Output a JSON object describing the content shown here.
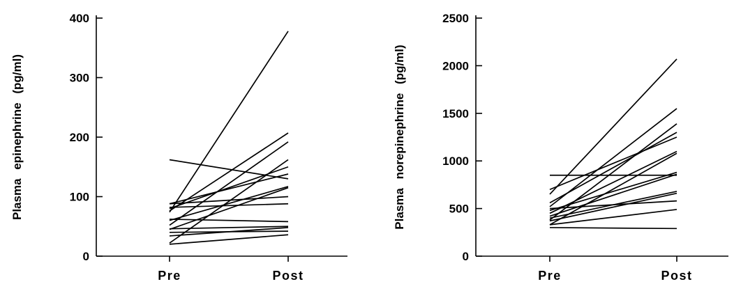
{
  "chart_data": [
    {
      "type": "line",
      "ylabel": "Plasma epinephrine (pg/ml)",
      "xlabel": "",
      "categories": [
        "Pre",
        "Post"
      ],
      "yticks": [
        0,
        100,
        200,
        300,
        400
      ],
      "ylim": [
        0,
        400
      ],
      "grid": false,
      "series": [
        {
          "values": [
            74,
            378
          ]
        },
        {
          "values": [
            76,
            207
          ]
        },
        {
          "values": [
            52,
            192
          ]
        },
        {
          "values": [
            22,
            162
          ]
        },
        {
          "values": [
            162,
            130
          ]
        },
        {
          "values": [
            80,
            150
          ]
        },
        {
          "values": [
            88,
            138
          ]
        },
        {
          "values": [
            60,
            117
          ]
        },
        {
          "values": [
            45,
            115
          ]
        },
        {
          "values": [
            88,
            100
          ]
        },
        {
          "values": [
            82,
            88
          ]
        },
        {
          "values": [
            62,
            58
          ]
        },
        {
          "values": [
            46,
            50
          ]
        },
        {
          "values": [
            34,
            48
          ]
        },
        {
          "values": [
            40,
            42
          ]
        },
        {
          "values": [
            20,
            36
          ]
        }
      ]
    },
    {
      "type": "line",
      "ylabel": "Plasma norepinephrine (pg/ml)",
      "xlabel": "",
      "categories": [
        "Pre",
        "Post"
      ],
      "yticks": [
        0,
        500,
        1000,
        1500,
        2000,
        2500
      ],
      "ylim": [
        0,
        2500
      ],
      "grid": false,
      "series": [
        {
          "values": [
            650,
            2070
          ]
        },
        {
          "values": [
            520,
            1550
          ]
        },
        {
          "values": [
            380,
            1390
          ]
        },
        {
          "values": [
            560,
            1300
          ]
        },
        {
          "values": [
            700,
            1250
          ]
        },
        {
          "values": [
            450,
            1100
          ]
        },
        {
          "values": [
            330,
            1080
          ]
        },
        {
          "values": [
            850,
            850
          ]
        },
        {
          "values": [
            480,
            880
          ]
        },
        {
          "values": [
            420,
            860
          ]
        },
        {
          "values": [
            400,
            680
          ]
        },
        {
          "values": [
            370,
            660
          ]
        },
        {
          "values": [
            500,
            580
          ]
        },
        {
          "values": [
            330,
            490
          ]
        },
        {
          "values": [
            300,
            290
          ]
        }
      ]
    }
  ]
}
